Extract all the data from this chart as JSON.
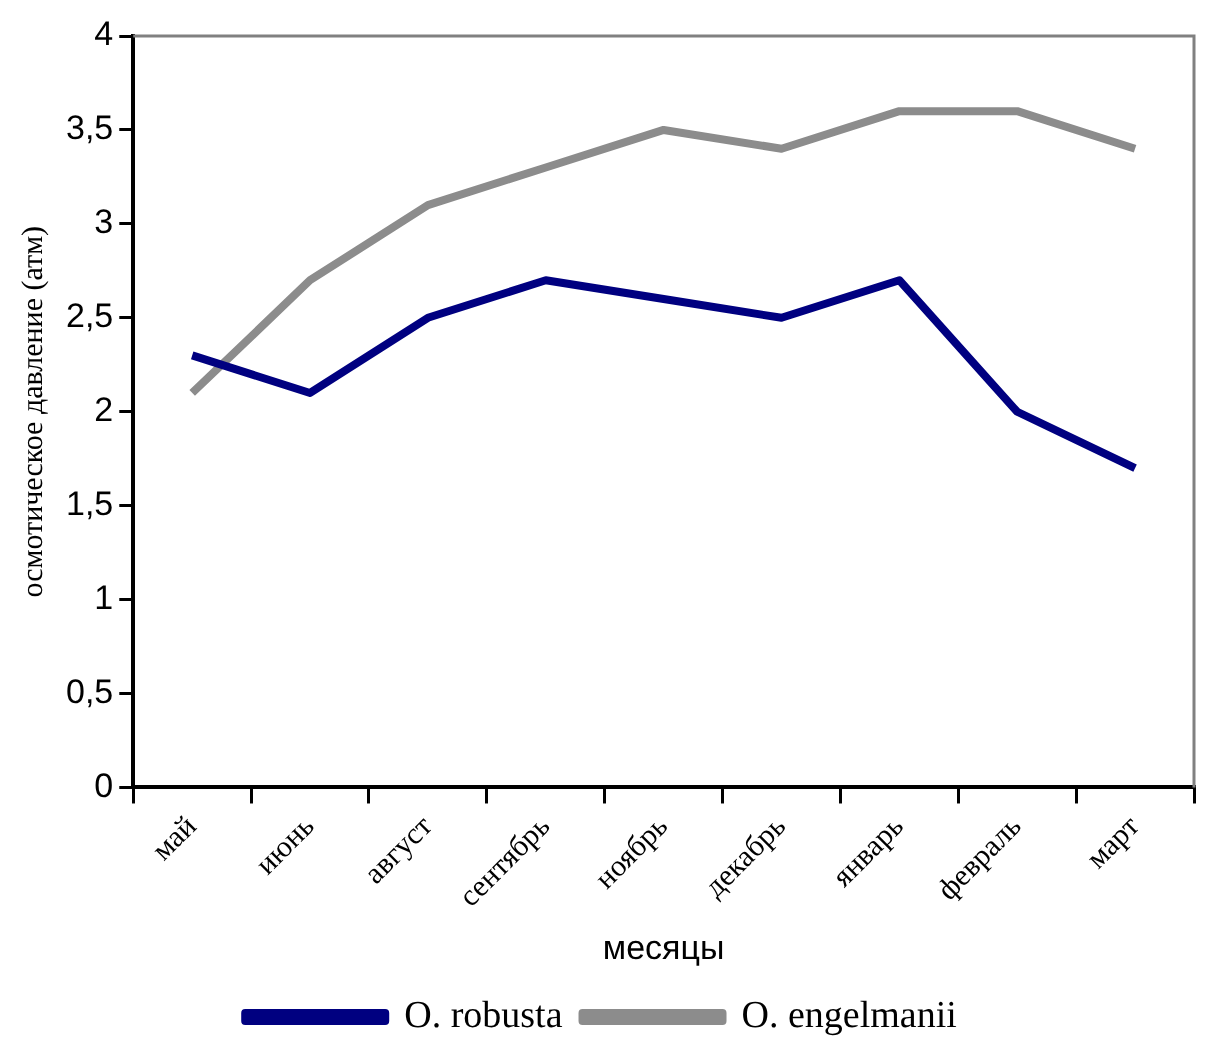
{
  "chart_data": {
    "type": "line",
    "xlabel": "месяцы",
    "ylabel": "осмотическое давление (атм)",
    "categories": [
      "май",
      "июнь",
      "август",
      "сентябрь",
      "ноябрь",
      "декабрь",
      "январь",
      "февраль",
      "март"
    ],
    "series": [
      {
        "name": "O. robusta",
        "color": "#000080",
        "values": [
          2.3,
          2.1,
          2.5,
          2.7,
          2.6,
          2.5,
          2.7,
          2.0,
          1.7
        ]
      },
      {
        "name": "O. engelmanii",
        "color": "#8c8c8c",
        "values": [
          2.1,
          2.7,
          3.1,
          3.3,
          3.5,
          3.4,
          3.6,
          3.6,
          3.4
        ]
      }
    ],
    "ylim": [
      0,
      4
    ],
    "yticks": [
      0,
      {
        "value": 0.5,
        "label": "0,5"
      },
      1,
      {
        "value": 1.5,
        "label": "1,5"
      },
      2,
      {
        "value": 2.5,
        "label": "2,5"
      },
      3,
      {
        "value": 3.5,
        "label": "3,5"
      },
      4
    ],
    "grid": false,
    "legend": "bottom",
    "marker": "none",
    "line_style": "solid"
  }
}
